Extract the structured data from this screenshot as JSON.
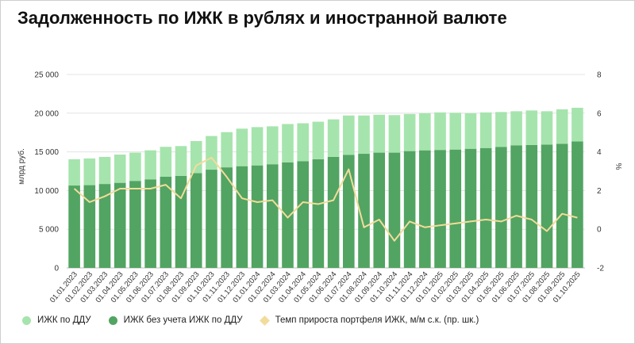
{
  "page": {
    "title": "Задолженность по ИЖК в рублях и иностранной валюте"
  },
  "chart_data": {
    "type": "bar",
    "stacked": true,
    "categories": [
      "01.01.2023",
      "01.02.2023",
      "01.03.2023",
      "01.04.2023",
      "01.05.2023",
      "01.06.2023",
      "01.07.2023",
      "01.08.2023",
      "01.09.2023",
      "01.10.2023",
      "01.11.2023",
      "01.12.2023",
      "01.01.2024",
      "01.02.2024",
      "01.03.2024",
      "01.04.2024",
      "01.05.2024",
      "01.06.2024",
      "01.07.2024",
      "01.08.2024",
      "01.09.2024",
      "01.10.2024",
      "01.11.2024",
      "01.12.2024",
      "01.01.2025",
      "01.02.2025",
      "01.03.2025",
      "01.04.2025",
      "01.05.2025",
      "01.06.2025",
      "01.07.2025",
      "01.08.2025",
      "01.09.2025",
      "01.10.2025"
    ],
    "ylabel": "млрд руб.",
    "y2label": "%",
    "ylim": [
      0,
      25000
    ],
    "y2lim": [
      -2,
      8
    ],
    "yticks": [
      "0",
      "5 000",
      "10 000",
      "15 000",
      "20 000",
      "25 000"
    ],
    "y2ticks": [
      "-2",
      "0",
      "2",
      "4",
      "6",
      "8"
    ],
    "grid": true,
    "legend_position": "bottom-left",
    "series": [
      {
        "name": "ИЖК без учета ИЖК по ДДУ",
        "kind": "bar",
        "color": "#52a462",
        "values": [
          10650,
          10700,
          10850,
          11000,
          11250,
          11450,
          11800,
          11900,
          12250,
          12700,
          13000,
          13150,
          13250,
          13400,
          13650,
          13800,
          14050,
          14350,
          14600,
          14750,
          14900,
          14900,
          15100,
          15200,
          15250,
          15300,
          15400,
          15500,
          15650,
          15850,
          15900,
          15950,
          16050,
          16350
        ]
      },
      {
        "name": "ИЖК по ДДУ",
        "kind": "bar",
        "stacked_on": "ИЖК без учета ИЖК по ДДУ",
        "color": "#a6e4ad",
        "values": [
          3400,
          3450,
          3500,
          3650,
          3650,
          3750,
          3850,
          3850,
          4150,
          4350,
          4550,
          4850,
          4950,
          4900,
          4950,
          4900,
          4850,
          4850,
          5100,
          4950,
          4900,
          4850,
          4800,
          4800,
          4850,
          4750,
          4600,
          4600,
          4500,
          4400,
          4450,
          4300,
          4450,
          4350
        ]
      },
      {
        "name": "Темп прироста портфеля ИЖК, м/м с.к. (пр. шк.)",
        "kind": "line",
        "axis": "right",
        "color": "#f2dc9b",
        "values": [
          2.1,
          1.4,
          1.7,
          2.1,
          2.1,
          2.1,
          2.3,
          1.6,
          3.3,
          3.7,
          2.7,
          1.6,
          1.4,
          1.5,
          0.6,
          1.4,
          1.3,
          1.5,
          3.1,
          0.1,
          0.5,
          -0.6,
          0.4,
          0.1,
          0.2,
          0.3,
          0.4,
          0.5,
          0.4,
          0.7,
          0.5,
          -0.1,
          0.8,
          0.6
        ]
      }
    ]
  }
}
